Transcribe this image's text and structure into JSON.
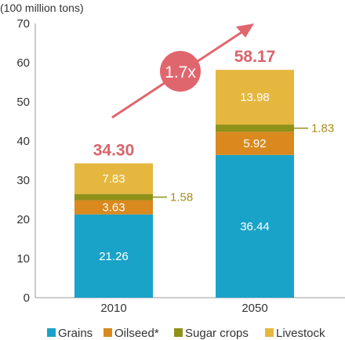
{
  "chart_data": {
    "type": "bar",
    "stacked": true,
    "ylabel": "(100 million tons)",
    "ylim": [
      0,
      70
    ],
    "yticks": [
      0,
      10,
      20,
      30,
      40,
      50,
      60,
      70
    ],
    "categories": [
      "2010",
      "2050"
    ],
    "series": [
      {
        "name": "Grains",
        "values": [
          21.26,
          36.44
        ],
        "color": "#1aa3c8",
        "label_position": "inside"
      },
      {
        "name": "Oilseed*",
        "values": [
          3.63,
          5.92
        ],
        "color": "#d9891e",
        "label_position": "inside"
      },
      {
        "name": "Sugar crops",
        "values": [
          1.58,
          1.83
        ],
        "color": "#8f9119",
        "label_position": "outside"
      },
      {
        "name": "Livestock",
        "values": [
          7.83,
          13.98
        ],
        "color": "#e5b73f",
        "label_position": "inside"
      }
    ],
    "value_labels": [
      [
        "21.26",
        "36.44"
      ],
      [
        "3.63",
        "5.92"
      ],
      [
        "1.58",
        "1.83"
      ],
      [
        "7.83",
        "13.98"
      ]
    ],
    "totals": [
      "34.30",
      "58.17"
    ],
    "annotation": {
      "text": "1.7x",
      "arrow_color": "#e0666e",
      "badge_color": "#e0666e"
    },
    "grid": false,
    "legend_position": "bottom"
  }
}
